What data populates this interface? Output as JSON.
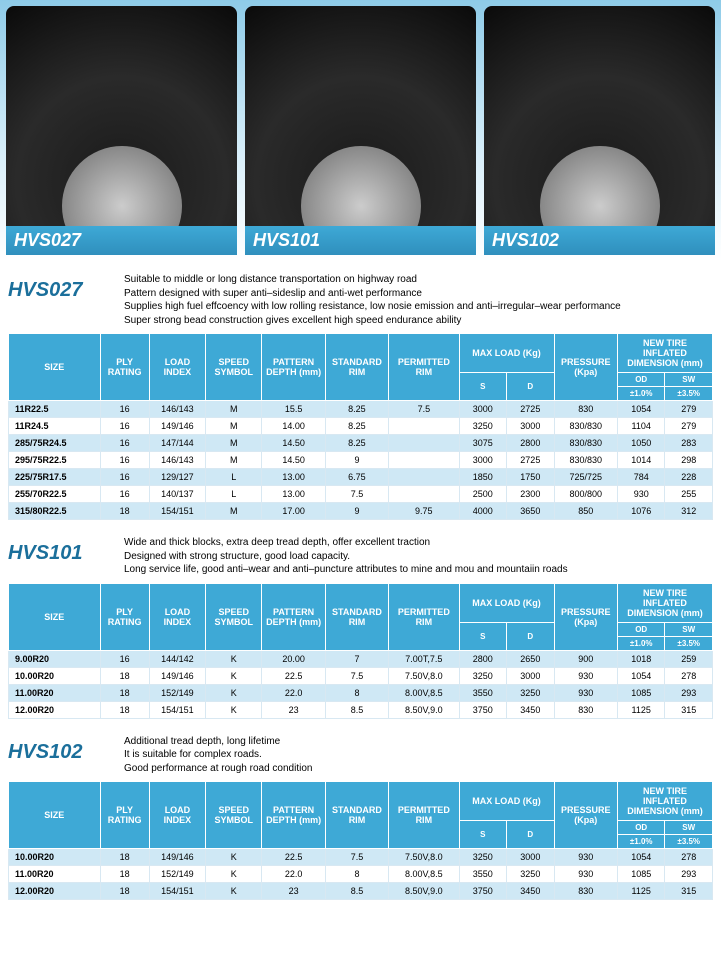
{
  "products": [
    {
      "id": "HVS027"
    },
    {
      "id": "HVS101"
    },
    {
      "id": "HVS102"
    }
  ],
  "columns": {
    "size": "SIZE",
    "ply": "PLY RATING",
    "load": "LOAD INDEX",
    "speed": "SPEED SYMBOL",
    "depth": "PATTERN DEPTH (mm)",
    "stdrim": "STANDARD RIM",
    "permrim": "PERMITTED RIM",
    "maxload": "MAX LOAD (Kg)",
    "s": "S",
    "d": "D",
    "pressure": "PRESSURE (Kpa)",
    "newtire": "NEW TIRE INFLATED DIMENSION (mm)",
    "od": "OD",
    "sw": "SW",
    "tol_od": "±1.0%",
    "tol_sw": "±3.5%"
  },
  "sections": [
    {
      "title": "HVS027",
      "desc": [
        "Suitable to middle or long distance transportation on highway road",
        "Pattern designed with super anti–sideslip and anti-wet performance",
        "Supplies high fuel effcoency with low rolling resistance, low nosie emission and anti–irregular–wear performance",
        "Super strong bead construction gives excellent high speed endurance ability"
      ],
      "rows": [
        {
          "size": "11R22.5",
          "ply": "16",
          "load": "146/143",
          "speed": "M",
          "depth": "15.5",
          "stdrim": "8.25",
          "permrim": "7.5",
          "s": "3000",
          "d": "2725",
          "pressure": "830",
          "od": "1054",
          "sw": "279"
        },
        {
          "size": "11R24.5",
          "ply": "16",
          "load": "149/146",
          "speed": "M",
          "depth": "14.00",
          "stdrim": "8.25",
          "permrim": "",
          "s": "3250",
          "d": "3000",
          "pressure": "830/830",
          "od": "1104",
          "sw": "279"
        },
        {
          "size": "285/75R24.5",
          "ply": "16",
          "load": "147/144",
          "speed": "M",
          "depth": "14.50",
          "stdrim": "8.25",
          "permrim": "",
          "s": "3075",
          "d": "2800",
          "pressure": "830/830",
          "od": "1050",
          "sw": "283"
        },
        {
          "size": "295/75R22.5",
          "ply": "16",
          "load": "146/143",
          "speed": "M",
          "depth": "14.50",
          "stdrim": "9",
          "permrim": "",
          "s": "3000",
          "d": "2725",
          "pressure": "830/830",
          "od": "1014",
          "sw": "298"
        },
        {
          "size": "225/75R17.5",
          "ply": "16",
          "load": "129/127",
          "speed": "L",
          "depth": "13.00",
          "stdrim": "6.75",
          "permrim": "",
          "s": "1850",
          "d": "1750",
          "pressure": "725/725",
          "od": "784",
          "sw": "228"
        },
        {
          "size": "255/70R22.5",
          "ply": "16",
          "load": "140/137",
          "speed": "L",
          "depth": "13.00",
          "stdrim": "7.5",
          "permrim": "",
          "s": "2500",
          "d": "2300",
          "pressure": "800/800",
          "od": "930",
          "sw": "255"
        },
        {
          "size": "315/80R22.5",
          "ply": "18",
          "load": "154/151",
          "speed": "M",
          "depth": "17.00",
          "stdrim": "9",
          "permrim": "9.75",
          "s": "4000",
          "d": "3650",
          "pressure": "850",
          "od": "1076",
          "sw": "312"
        }
      ]
    },
    {
      "title": "HVS101",
      "desc": [
        "Wide and thick blocks, extra deep tread depth, offer excellent traction",
        "Designed with strong structure, good load capacity.",
        "Long service life, good anti–wear and anti–puncture attributes to mine and mou and mountaiin roads"
      ],
      "rows": [
        {
          "size": "9.00R20",
          "ply": "16",
          "load": "144/142",
          "speed": "K",
          "depth": "20.00",
          "stdrim": "7",
          "permrim": "7.00T,7.5",
          "s": "2800",
          "d": "2650",
          "pressure": "900",
          "od": "1018",
          "sw": "259"
        },
        {
          "size": "10.00R20",
          "ply": "18",
          "load": "149/146",
          "speed": "K",
          "depth": "22.5",
          "stdrim": "7.5",
          "permrim": "7.50V,8.0",
          "s": "3250",
          "d": "3000",
          "pressure": "930",
          "od": "1054",
          "sw": "278"
        },
        {
          "size": "11.00R20",
          "ply": "18",
          "load": "152/149",
          "speed": "K",
          "depth": "22.0",
          "stdrim": "8",
          "permrim": "8.00V,8.5",
          "s": "3550",
          "d": "3250",
          "pressure": "930",
          "od": "1085",
          "sw": "293"
        },
        {
          "size": "12.00R20",
          "ply": "18",
          "load": "154/151",
          "speed": "K",
          "depth": "23",
          "stdrim": "8.5",
          "permrim": "8.50V,9.0",
          "s": "3750",
          "d": "3450",
          "pressure": "830",
          "od": "1125",
          "sw": "315"
        }
      ]
    },
    {
      "title": "HVS102",
      "desc": [
        "Additional tread depth, long lifetime",
        "It is suitable for complex roads.",
        "Good performance at rough road condition"
      ],
      "rows": [
        {
          "size": "10.00R20",
          "ply": "18",
          "load": "149/146",
          "speed": "K",
          "depth": "22.5",
          "stdrim": "7.5",
          "permrim": "7.50V,8.0",
          "s": "3250",
          "d": "3000",
          "pressure": "930",
          "od": "1054",
          "sw": "278"
        },
        {
          "size": "11.00R20",
          "ply": "18",
          "load": "152/149",
          "speed": "K",
          "depth": "22.0",
          "stdrim": "8",
          "permrim": "8.00V,8.5",
          "s": "3550",
          "d": "3250",
          "pressure": "930",
          "od": "1085",
          "sw": "293"
        },
        {
          "size": "12.00R20",
          "ply": "18",
          "load": "154/151",
          "speed": "K",
          "depth": "23",
          "stdrim": "8.5",
          "permrim": "8.50V,9.0",
          "s": "3750",
          "d": "3450",
          "pressure": "830",
          "od": "1125",
          "sw": "315"
        }
      ]
    }
  ],
  "colwidths": [
    "13%",
    "7%",
    "8%",
    "8%",
    "9%",
    "9%",
    "10%",
    "7%",
    "7%",
    "9%",
    "6.5%",
    "6.5%"
  ]
}
